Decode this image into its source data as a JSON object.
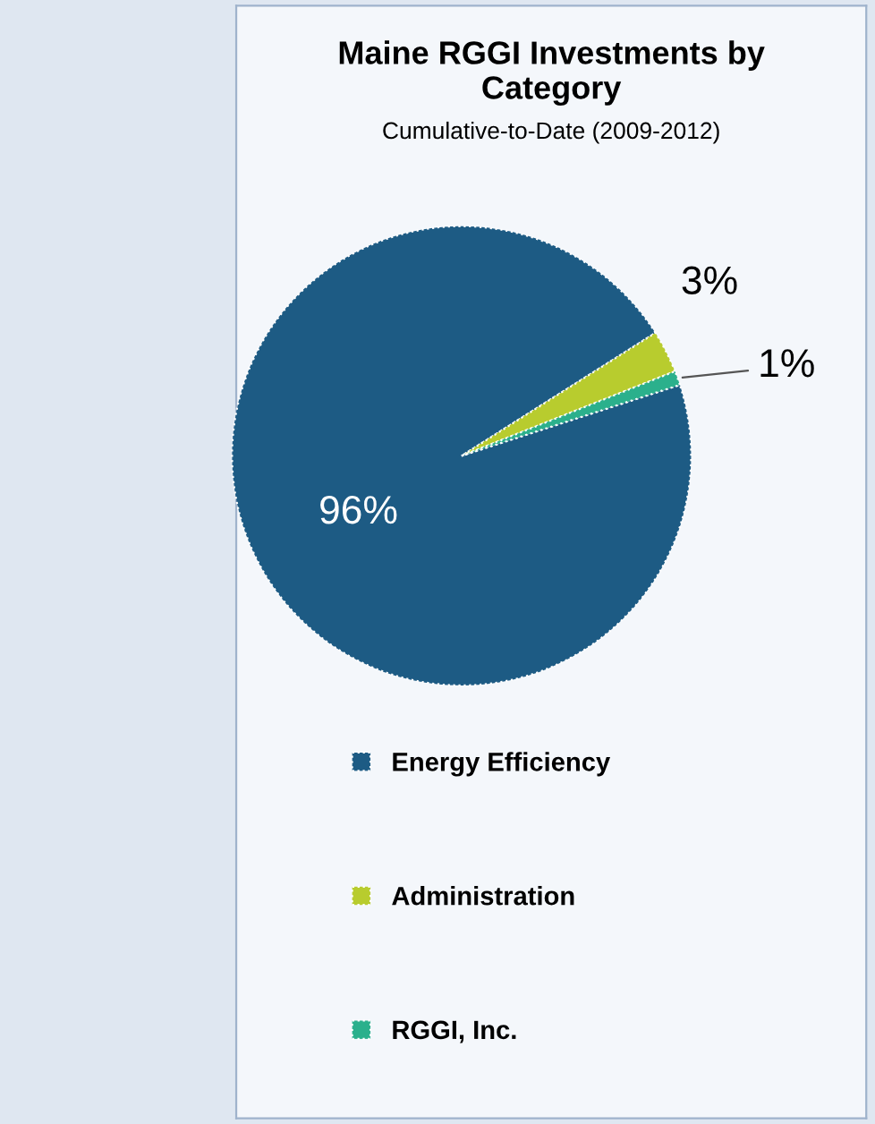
{
  "chart_data": {
    "type": "pie",
    "title": "Maine RGGI Investments by\nCategory",
    "subtitle": "Cumulative-to-Date (2009-2012)",
    "categories": [
      "Energy Efficiency",
      "Administration",
      "RGGI, Inc."
    ],
    "values": [
      96,
      3,
      1
    ],
    "colors": [
      "#1d5b84",
      "#b8cc2e",
      "#2bb08c"
    ],
    "value_labels": [
      "96%",
      "3%",
      "1%"
    ],
    "legend": "bottom"
  }
}
